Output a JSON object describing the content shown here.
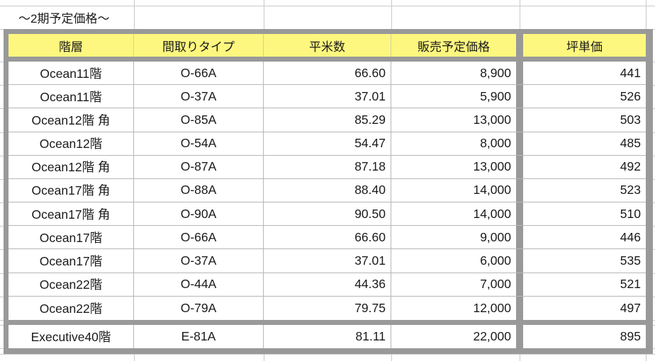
{
  "title": "〜2期予定価格〜",
  "colors": {
    "header_bg": "#fdf77f",
    "thick_border": "#999999",
    "grid_line": "#c9c9c9",
    "cell_line": "#b7b7b7",
    "text": "#1a1a1a"
  },
  "table": {
    "headers": [
      "階層",
      "間取りタイプ",
      "平米数",
      "販売予定価格",
      "坪単価"
    ],
    "rows": [
      {
        "floor": "Ocean11階",
        "type": "O-66A",
        "sqm": "66.60",
        "price": "8,900",
        "unit_price": "441"
      },
      {
        "floor": "Ocean11階",
        "type": "O-37A",
        "sqm": "37.01",
        "price": "5,900",
        "unit_price": "526"
      },
      {
        "floor": "Ocean12階 角",
        "type": "O-85A",
        "sqm": "85.29",
        "price": "13,000",
        "unit_price": "503"
      },
      {
        "floor": "Ocean12階",
        "type": "O-54A",
        "sqm": "54.47",
        "price": "8,000",
        "unit_price": "485"
      },
      {
        "floor": "Ocean12階 角",
        "type": "O-87A",
        "sqm": "87.18",
        "price": "13,000",
        "unit_price": "492"
      },
      {
        "floor": "Ocean17階 角",
        "type": "O-88A",
        "sqm": "88.40",
        "price": "14,000",
        "unit_price": "523"
      },
      {
        "floor": "Ocean17階 角",
        "type": "O-90A",
        "sqm": "90.50",
        "price": "14,000",
        "unit_price": "510"
      },
      {
        "floor": "Ocean17階",
        "type": "O-66A",
        "sqm": "66.60",
        "price": "9,000",
        "unit_price": "446"
      },
      {
        "floor": "Ocean17階",
        "type": "O-37A",
        "sqm": "37.01",
        "price": "6,000",
        "unit_price": "535"
      },
      {
        "floor": "Ocean22階",
        "type": "O-44A",
        "sqm": "44.36",
        "price": "7,000",
        "unit_price": "521"
      },
      {
        "floor": "Ocean22階",
        "type": "O-79A",
        "sqm": "79.75",
        "price": "12,000",
        "unit_price": "497"
      }
    ],
    "executive_row": {
      "floor": "Executive40階",
      "type": "E-81A",
      "sqm": "81.11",
      "price": "22,000",
      "unit_price": "895"
    }
  }
}
